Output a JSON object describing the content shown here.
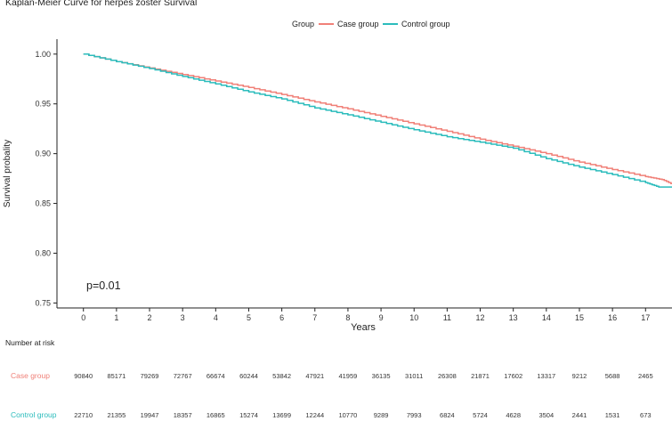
{
  "chart_data": {
    "type": "line",
    "title": "Kaplan-Meier Curve for herpes zoster Survival",
    "xlabel": "Years",
    "ylabel": "Survival probality",
    "xlim": [
      -0.8,
      17.8
    ],
    "ylim": [
      0.745,
      1.015
    ],
    "x_ticks": [
      "0",
      "1",
      "2",
      "3",
      "4",
      "5",
      "6",
      "7",
      "8",
      "9",
      "10",
      "11",
      "12",
      "13",
      "14",
      "15",
      "16",
      "17"
    ],
    "y_ticks": [
      "0.75",
      "0.80",
      "0.85",
      "0.90",
      "0.95",
      "1.00"
    ],
    "legend_title": "Group",
    "legend_position": "top",
    "annotation": "p=0.01",
    "series": [
      {
        "name": "Case group",
        "color": "#F08078",
        "x": [
          0,
          1,
          2,
          3,
          4,
          5,
          6,
          7,
          8,
          9,
          10,
          11,
          12,
          13,
          14,
          15,
          16,
          17,
          17.5,
          17.9
        ],
        "values": [
          1.0,
          0.9925,
          0.986,
          0.9795,
          0.973,
          0.9665,
          0.9595,
          0.952,
          0.945,
          0.9375,
          0.93,
          0.9225,
          0.9145,
          0.9075,
          0.9,
          0.8915,
          0.884,
          0.877,
          0.874,
          0.868
        ]
      },
      {
        "name": "Control group",
        "color": "#2BBCBC",
        "x": [
          0,
          1,
          2,
          3,
          4,
          5,
          6,
          7,
          8,
          9,
          10,
          11,
          12,
          13,
          14,
          15,
          16,
          17,
          17.4,
          17.9
        ],
        "values": [
          1.0,
          0.9925,
          0.9855,
          0.9775,
          0.97,
          0.962,
          0.955,
          0.946,
          0.939,
          0.9315,
          0.924,
          0.917,
          0.9115,
          0.9055,
          0.895,
          0.8865,
          0.879,
          0.871,
          0.8665,
          0.8665
        ]
      }
    ]
  },
  "risk_table": {
    "header": "Number at risk",
    "rows": [
      {
        "label": "Case group",
        "color": "#F08078",
        "values": [
          "90840",
          "85171",
          "79269",
          "72767",
          "66674",
          "60244",
          "53842",
          "47921",
          "41959",
          "36135",
          "31011",
          "26308",
          "21871",
          "17602",
          "13317",
          "9212",
          "5688",
          "2465"
        ]
      },
      {
        "label": "Control group",
        "color": "#2BBCBC",
        "values": [
          "22710",
          "21355",
          "19947",
          "18357",
          "16865",
          "15274",
          "13699",
          "12244",
          "10770",
          "9289",
          "7993",
          "6824",
          "5724",
          "4628",
          "3504",
          "2441",
          "1531",
          "673"
        ]
      }
    ]
  }
}
